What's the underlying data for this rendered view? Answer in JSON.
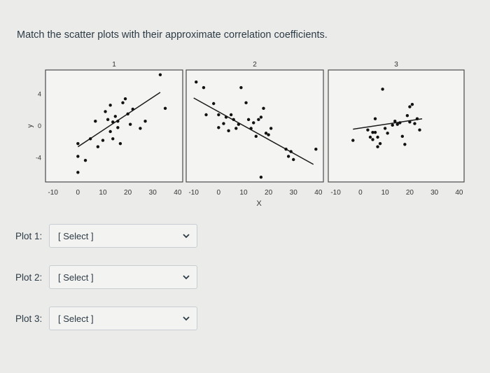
{
  "question": "Match the scatter plots with their approximate correlation coefficients.",
  "chart_data": [
    {
      "type": "scatter",
      "title": "1",
      "ylabel": "y",
      "xticks": [
        "-10",
        "0",
        "10",
        "20",
        "30",
        "40"
      ],
      "yticks": [
        "4",
        "0",
        "-4"
      ],
      "xlim": [
        -13,
        42
      ],
      "ylim": [
        -7,
        7
      ],
      "points": [
        [
          0,
          -2.2
        ],
        [
          0,
          -3.8
        ],
        [
          0,
          -5.8
        ],
        [
          3,
          -4.3
        ],
        [
          5,
          -1.6
        ],
        [
          7,
          0.6
        ],
        [
          8,
          -2.6
        ],
        [
          10,
          -1.8
        ],
        [
          11,
          1.8
        ],
        [
          12,
          0.8
        ],
        [
          13,
          -0.7
        ],
        [
          13,
          2.6
        ],
        [
          14,
          0.5
        ],
        [
          14,
          -1.6
        ],
        [
          15,
          1.2
        ],
        [
          16,
          -0.2
        ],
        [
          16,
          0.6
        ],
        [
          17,
          -2.2
        ],
        [
          18,
          2.9
        ],
        [
          19,
          3.4
        ],
        [
          20,
          1.5
        ],
        [
          21,
          0.2
        ],
        [
          22,
          2.1
        ],
        [
          25,
          -0.3
        ],
        [
          27,
          0.6
        ],
        [
          33,
          6.4
        ],
        [
          35,
          2.2
        ]
      ],
      "trend": [
        [
          0,
          -2.6
        ],
        [
          33,
          4.2
        ]
      ]
    },
    {
      "type": "scatter",
      "title": "2",
      "xlabel": "X",
      "xticks": [
        "-10",
        "0",
        "10",
        "20",
        "30",
        "40"
      ],
      "xlim": [
        -13,
        42
      ],
      "ylim": [
        -7,
        7
      ],
      "points": [
        [
          -9,
          5.5
        ],
        [
          -6,
          4.8
        ],
        [
          -5,
          1.4
        ],
        [
          -2,
          2.8
        ],
        [
          0,
          1.4
        ],
        [
          0,
          -0.2
        ],
        [
          2,
          0.3
        ],
        [
          3,
          1.1
        ],
        [
          4,
          -0.6
        ],
        [
          5,
          1.4
        ],
        [
          6,
          0.8
        ],
        [
          7,
          -0.3
        ],
        [
          8,
          0.2
        ],
        [
          9,
          4.8
        ],
        [
          11,
          2.9
        ],
        [
          12,
          0.8
        ],
        [
          13,
          -0.3
        ],
        [
          14,
          0.4
        ],
        [
          15,
          -1.3
        ],
        [
          16,
          0.8
        ],
        [
          17,
          -6.4
        ],
        [
          17,
          1.1
        ],
        [
          18,
          2.2
        ],
        [
          19,
          -0.9
        ],
        [
          20,
          -1.1
        ],
        [
          21,
          -0.3
        ],
        [
          27,
          -2.9
        ],
        [
          28,
          -3.8
        ],
        [
          29,
          -3.2
        ],
        [
          30,
          -4.2
        ],
        [
          39,
          -2.9
        ]
      ],
      "trend": [
        [
          -10,
          3.5
        ],
        [
          38,
          -4.8
        ]
      ]
    },
    {
      "type": "scatter",
      "title": "3",
      "xticks": [
        "-10",
        "0",
        "10",
        "20",
        "30",
        "40"
      ],
      "xlim": [
        -13,
        42
      ],
      "ylim": [
        -7,
        7
      ],
      "points": [
        [
          -3,
          -1.8
        ],
        [
          3,
          -0.5
        ],
        [
          4,
          -1.4
        ],
        [
          5,
          -0.8
        ],
        [
          5,
          -1.7
        ],
        [
          6,
          0.9
        ],
        [
          6,
          -0.8
        ],
        [
          7,
          -1.4
        ],
        [
          7,
          -2.6
        ],
        [
          8,
          -2.2
        ],
        [
          9,
          4.6
        ],
        [
          10,
          -0.3
        ],
        [
          11,
          -0.9
        ],
        [
          13,
          0.1
        ],
        [
          14,
          0.6
        ],
        [
          15,
          0.2
        ],
        [
          16,
          0.4
        ],
        [
          17,
          -1.3
        ],
        [
          18,
          -2.3
        ],
        [
          19,
          1.3
        ],
        [
          20,
          2.4
        ],
        [
          20,
          0.5
        ],
        [
          21,
          2.7
        ],
        [
          22,
          0.3
        ],
        [
          23,
          0.9
        ],
        [
          24,
          -0.5
        ]
      ],
      "trend": [
        [
          -3,
          -0.4
        ],
        [
          25,
          0.9
        ]
      ]
    }
  ],
  "rows": [
    {
      "label": "Plot 1:",
      "value": "[ Select ]"
    },
    {
      "label": "Plot 2:",
      "value": "[ Select ]"
    },
    {
      "label": "Plot 3:",
      "value": "[ Select ]"
    }
  ]
}
